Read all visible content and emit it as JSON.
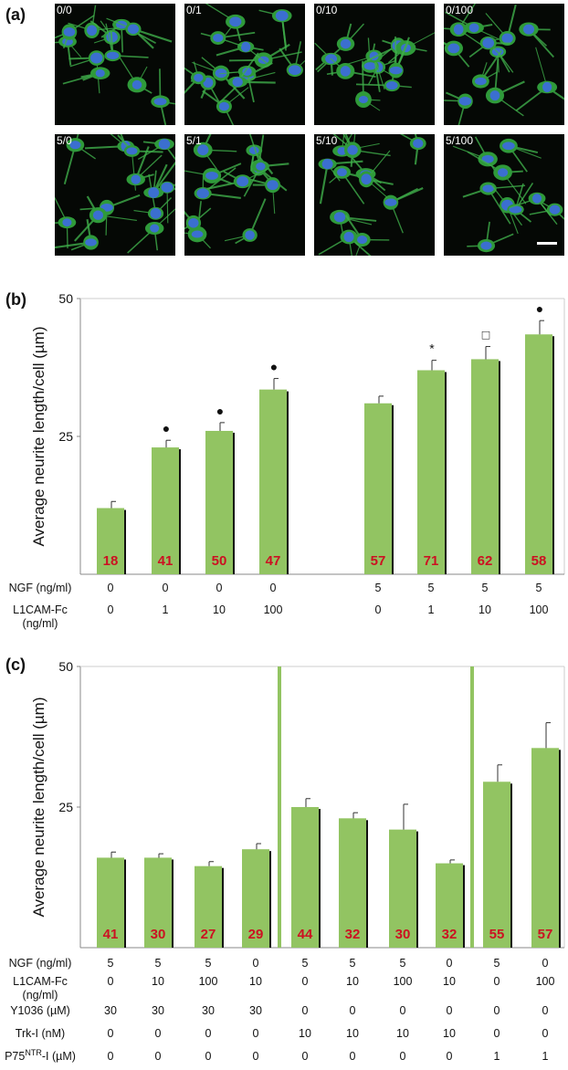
{
  "panel_labels": {
    "a": "(a)",
    "b": "(b)",
    "c": "(c)"
  },
  "micrographs": [
    {
      "label": "0/0"
    },
    {
      "label": "0/1"
    },
    {
      "label": "0/10"
    },
    {
      "label": "0/100"
    },
    {
      "label": "5/0"
    },
    {
      "label": "5/1"
    },
    {
      "label": "5/10"
    },
    {
      "label": "5/100"
    }
  ],
  "colors": {
    "bar": "#92c462",
    "bar_shadow": "#111111",
    "n_label": "#cc1122",
    "divider": "#92c462",
    "axis": "#888888"
  },
  "chart_data": [
    {
      "type": "bar",
      "panel": "(b)",
      "ylabel": "Average neurite length/cell (µm)",
      "ylim": [
        0,
        50
      ],
      "yticks": [
        "25",
        "50"
      ],
      "groups": [
        [
          0,
          1,
          2,
          3
        ],
        [
          4,
          5,
          6,
          7
        ]
      ],
      "values": [
        12,
        23,
        26,
        33.5,
        31,
        37,
        39,
        43.5
      ],
      "errors": [
        1.2,
        1.3,
        1.5,
        2,
        1.3,
        1.8,
        2.3,
        2.5
      ],
      "n_labels": [
        "18",
        "41",
        "50",
        "47",
        "57",
        "71",
        "62",
        "58"
      ],
      "markers": [
        "",
        "●",
        "●",
        "●",
        "",
        "*",
        "□",
        "●"
      ],
      "conditions": [
        {
          "label": "NGF (ng/ml)",
          "values": [
            "0",
            "0",
            "0",
            "0",
            "5",
            "5",
            "5",
            "5"
          ]
        },
        {
          "label": "L1CAM-Fc\n(ng/ml)",
          "values": [
            "0",
            "1",
            "10",
            "100",
            "0",
            "1",
            "10",
            "100"
          ]
        }
      ]
    },
    {
      "type": "bar",
      "panel": "(c)",
      "ylabel": "Average neurite length/cell (µm)",
      "ylim": [
        0,
        50
      ],
      "yticks": [
        "25",
        "50"
      ],
      "groups": [
        [
          0,
          1,
          2,
          3
        ],
        [
          4,
          5,
          6,
          7
        ],
        [
          8,
          9
        ]
      ],
      "values": [
        16,
        16,
        14.5,
        17.5,
        25,
        23,
        21,
        15,
        29.5,
        35.5
      ],
      "errors": [
        1,
        0.7,
        0.8,
        1,
        1.5,
        1,
        4.5,
        0.6,
        3,
        4.5
      ],
      "n_labels": [
        "41",
        "30",
        "27",
        "29",
        "44",
        "32",
        "30",
        "32",
        "55",
        "57"
      ],
      "conditions": [
        {
          "label": "NGF (ng/ml)",
          "values": [
            "5",
            "5",
            "5",
            "0",
            "5",
            "5",
            "5",
            "0",
            "5",
            "0"
          ]
        },
        {
          "label": "L1CAM-Fc\n(ng/ml)",
          "values": [
            "0",
            "10",
            "100",
            "10",
            "0",
            "10",
            "100",
            "10",
            "0",
            "100"
          ]
        },
        {
          "label": "Y1036 (µM)",
          "values": [
            "30",
            "30",
            "30",
            "30",
            "0",
            "0",
            "0",
            "0",
            "0",
            "0"
          ]
        },
        {
          "label": "Trk-I (nM)",
          "values": [
            "0",
            "0",
            "0",
            "0",
            "10",
            "10",
            "10",
            "10",
            "0",
            "0"
          ]
        },
        {
          "label": "P75NTR-I (µM)",
          "values": [
            "0",
            "0",
            "0",
            "0",
            "0",
            "0",
            "0",
            "0",
            "1",
            "1"
          ]
        }
      ]
    }
  ]
}
